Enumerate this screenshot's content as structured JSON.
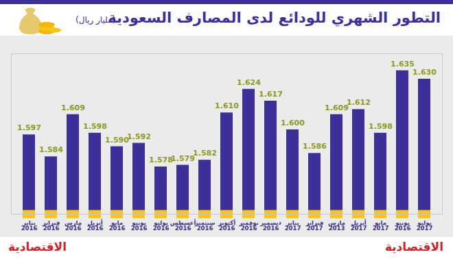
{
  "chart_data": {
    "type": "bar",
    "title": "التطور الشهري للودائع لدى المصارف السعودية",
    "subtitle": "(مليار ريال)",
    "logos": [
      "الاقتصادية",
      "الاقتصادية"
    ],
    "categories": [
      "يناير 2016",
      "فبراير 2016",
      "مارس 2016",
      "أبريل 2016",
      "مايو 2016",
      "يونيو 2016",
      "يوليو 2016",
      "أغسطس 2016",
      "سبتمبر 2016",
      "أكتوبر 2016",
      "نوفمبر 2016",
      "ديسمبر 2016",
      "يناير 2017",
      "فبراير 2017",
      "مارس 2013",
      "أبريل 2017",
      "مايو 2017",
      "يونيو 2016",
      "يوليو 2017"
    ],
    "values": [
      1.597,
      1.584,
      1.609,
      1.598,
      1.59,
      1.592,
      1.578,
      1.579,
      1.582,
      1.61,
      1.624,
      1.617,
      1.6,
      1.586,
      1.609,
      1.612,
      1.598,
      1.635,
      1.63
    ],
    "value_labels": [
      "1.597",
      "1.584",
      "1.609",
      "1.598",
      "1.590",
      "1.592",
      "1.578",
      "1.579",
      "1.582",
      "1.610",
      "1.624",
      "1.617",
      "1.600",
      "1.586",
      "1.609",
      "1.612",
      "1.598",
      "1.635",
      "1.630"
    ],
    "color": "#3d2f99",
    "ylim": [
      1.55,
      1.645
    ],
    "yticks": [],
    "grid": false,
    "data_labels": true,
    "tick_labels": "x"
  }
}
